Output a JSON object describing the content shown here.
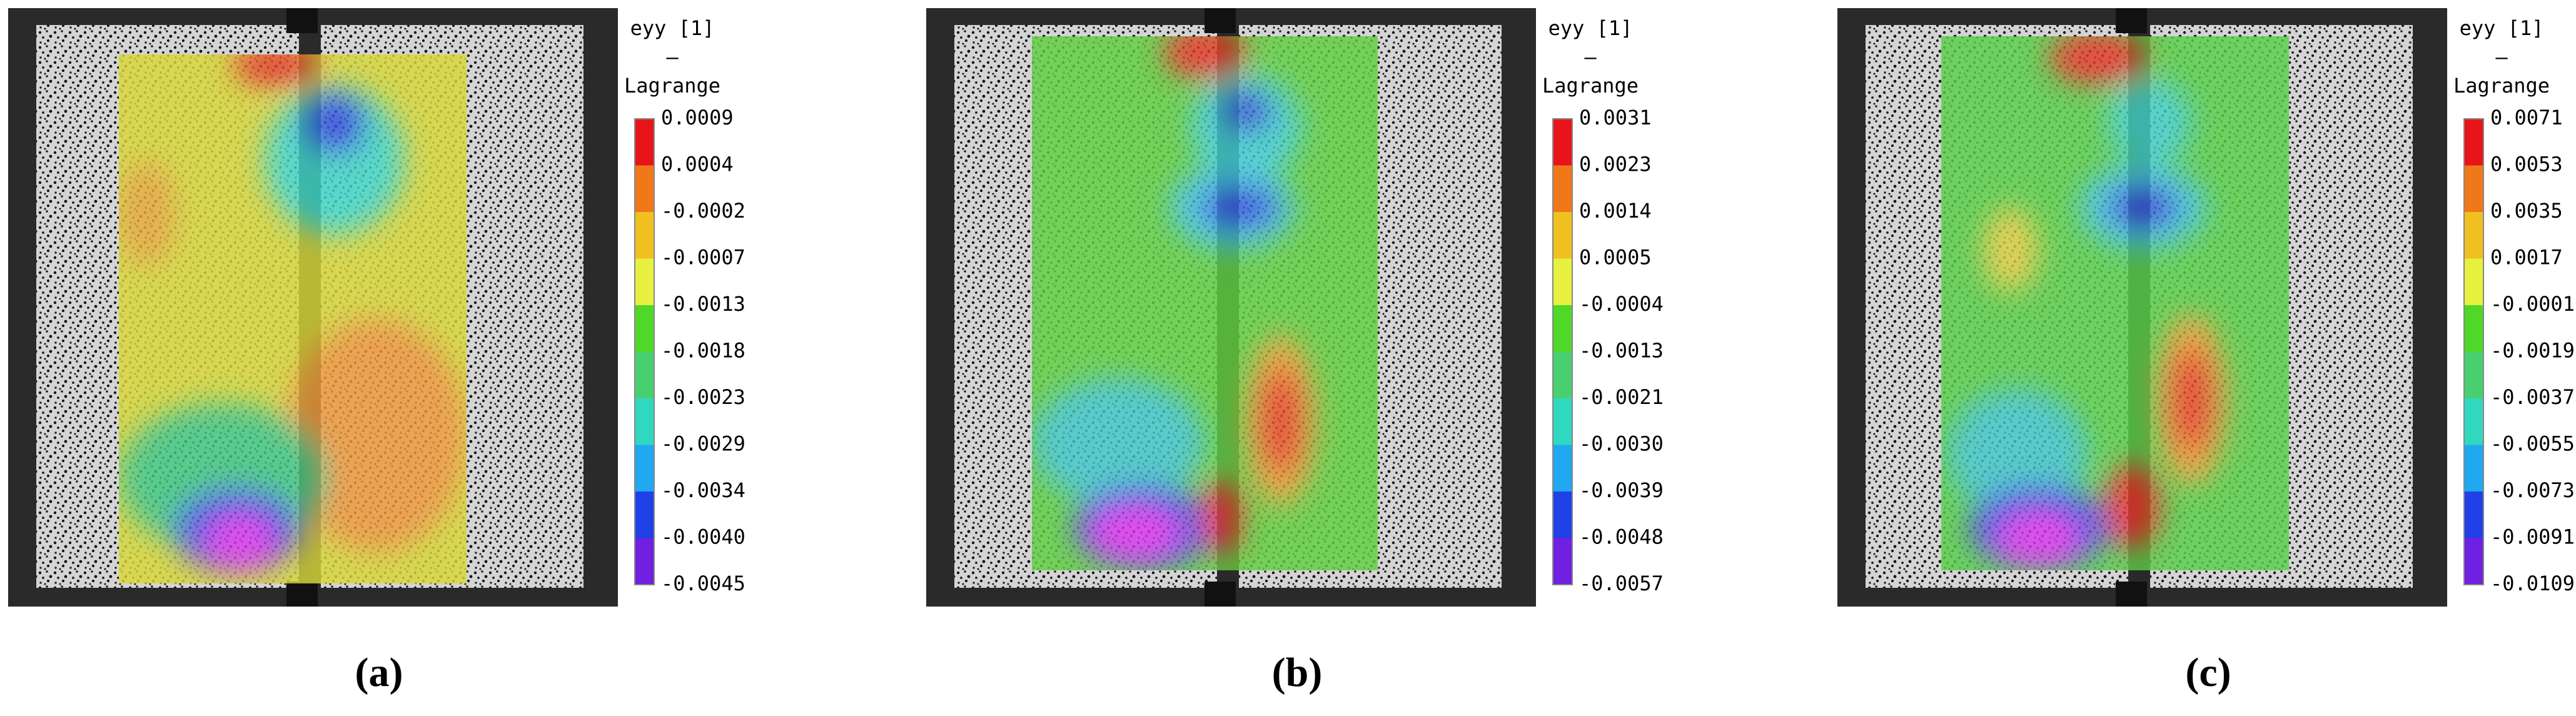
{
  "panels": [
    {
      "label": "(a)",
      "colorbar": {
        "title": [
          "eyy [1]",
          "–",
          "Lagrange"
        ],
        "ticks": [
          "0.0009",
          "0.0004",
          "-0.0002",
          "-0.0007",
          "-0.0013",
          "-0.0018",
          "-0.0023",
          "-0.0029",
          "-0.0034",
          "-0.0040",
          "-0.0045"
        ]
      }
    },
    {
      "label": "(b)",
      "colorbar": {
        "title": [
          "eyy [1]",
          "–",
          "Lagrange"
        ],
        "ticks": [
          "0.0031",
          "0.0023",
          "0.0014",
          "0.0005",
          "-0.0004",
          "-0.0013",
          "-0.0021",
          "-0.0030",
          "-0.0039",
          "-0.0048",
          "-0.0057"
        ]
      }
    },
    {
      "label": "(c)",
      "colorbar": {
        "title": [
          "eyy [1]",
          "–",
          "Lagrange"
        ],
        "ticks": [
          "0.0071",
          "0.0053",
          "0.0035",
          "0.0017",
          "-0.0001",
          "-0.0019",
          "-0.0037",
          "-0.0055",
          "-0.0073",
          "-0.0091",
          "-0.0109"
        ]
      }
    }
  ]
}
